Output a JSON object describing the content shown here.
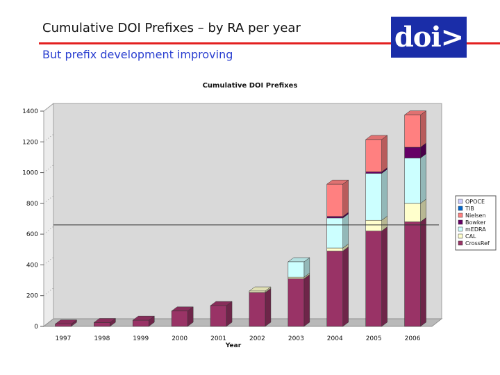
{
  "slide": {
    "title": "Cumulative DOI Prefixes – by RA per year",
    "subtitle": "But prefix development improving",
    "logo_text": "doi>"
  },
  "colors": {
    "rule": "#e32020",
    "subtitle": "#2a3fd0",
    "logo_bg": "#1a2da8"
  },
  "chart_data": {
    "type": "bar",
    "stacked": true,
    "three_d": true,
    "title": "Cumulative DOI Prefixes",
    "xlabel": "Year",
    "ylabel": "",
    "ylim": [
      0,
      1400
    ],
    "yticks": [
      0,
      200,
      400,
      600,
      800,
      1000,
      1200,
      1400
    ],
    "categories": [
      "1997",
      "1998",
      "1999",
      "2000",
      "2001",
      "2002",
      "2003",
      "2004",
      "2005",
      "2006"
    ],
    "reference_line": 660,
    "legend_position": "right",
    "series": [
      {
        "name": "CrossRef",
        "color": "#993366",
        "values": [
          15,
          25,
          40,
          100,
          135,
          220,
          310,
          490,
          620,
          680
        ]
      },
      {
        "name": "CAL",
        "color": "#ffffcc",
        "values": [
          0,
          0,
          0,
          0,
          0,
          10,
          10,
          20,
          70,
          120
        ]
      },
      {
        "name": "mEDRA",
        "color": "#ccffff",
        "values": [
          0,
          0,
          0,
          0,
          0,
          0,
          100,
          195,
          305,
          295
        ]
      },
      {
        "name": "Bowker",
        "color": "#660066",
        "values": [
          0,
          0,
          0,
          0,
          0,
          0,
          0,
          10,
          10,
          70
        ]
      },
      {
        "name": "Nielsen",
        "color": "#ff8080",
        "values": [
          0,
          0,
          0,
          0,
          0,
          0,
          0,
          210,
          210,
          210
        ]
      },
      {
        "name": "TIB",
        "color": "#0066cc",
        "values": [
          0,
          0,
          0,
          0,
          0,
          0,
          0,
          0,
          0,
          0
        ]
      },
      {
        "name": "OPOCE",
        "color": "#ccccff",
        "values": [
          0,
          0,
          0,
          0,
          0,
          0,
          0,
          0,
          0,
          0
        ]
      }
    ]
  }
}
